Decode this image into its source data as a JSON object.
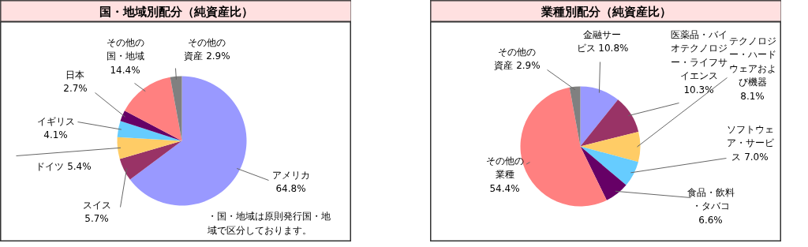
{
  "chart_data": [
    {
      "type": "pie",
      "title": "国・地域別配分（純資産比）",
      "categories": [
        "アメリカ",
        "スイス",
        "ドイツ",
        "イギリス",
        "日本",
        "その他の国・地域",
        "その他の資産"
      ],
      "values": [
        64.8,
        5.7,
        5.4,
        4.1,
        2.7,
        14.4,
        2.9
      ],
      "value_labels": [
        "64.8%",
        "5.7%",
        "5.4%",
        "4.1%",
        "2.7%",
        "14.4%",
        "2.9%"
      ],
      "colors": [
        "#9999ff",
        "#993366",
        "#ffcc66",
        "#66ccff",
        "#660066",
        "#ff8080",
        "#808080"
      ],
      "annotations": [
        "・国・地域は原則発行国・地域で区分しております。"
      ]
    },
    {
      "type": "pie",
      "title": "業種別配分（純資産比）",
      "categories": [
        "金融サービス",
        "医薬品・バイオテクノロジー・ライフサイエンス",
        "テクノロジー・ハードウェアおよび機器",
        "ソフトウェア・サービス",
        "食品・飲料・タバコ",
        "その他の業種",
        "その他の資産"
      ],
      "values": [
        10.8,
        10.3,
        8.1,
        7.0,
        6.6,
        54.4,
        2.9
      ],
      "value_labels": [
        "10.8%",
        "10.3%",
        "8.1%",
        "7.0%",
        "6.6%",
        "54.4%",
        "2.9%"
      ],
      "colors": [
        "#9999ff",
        "#993366",
        "#ffcc66",
        "#66ccff",
        "#660066",
        "#ff8080",
        "#808080"
      ]
    }
  ]
}
